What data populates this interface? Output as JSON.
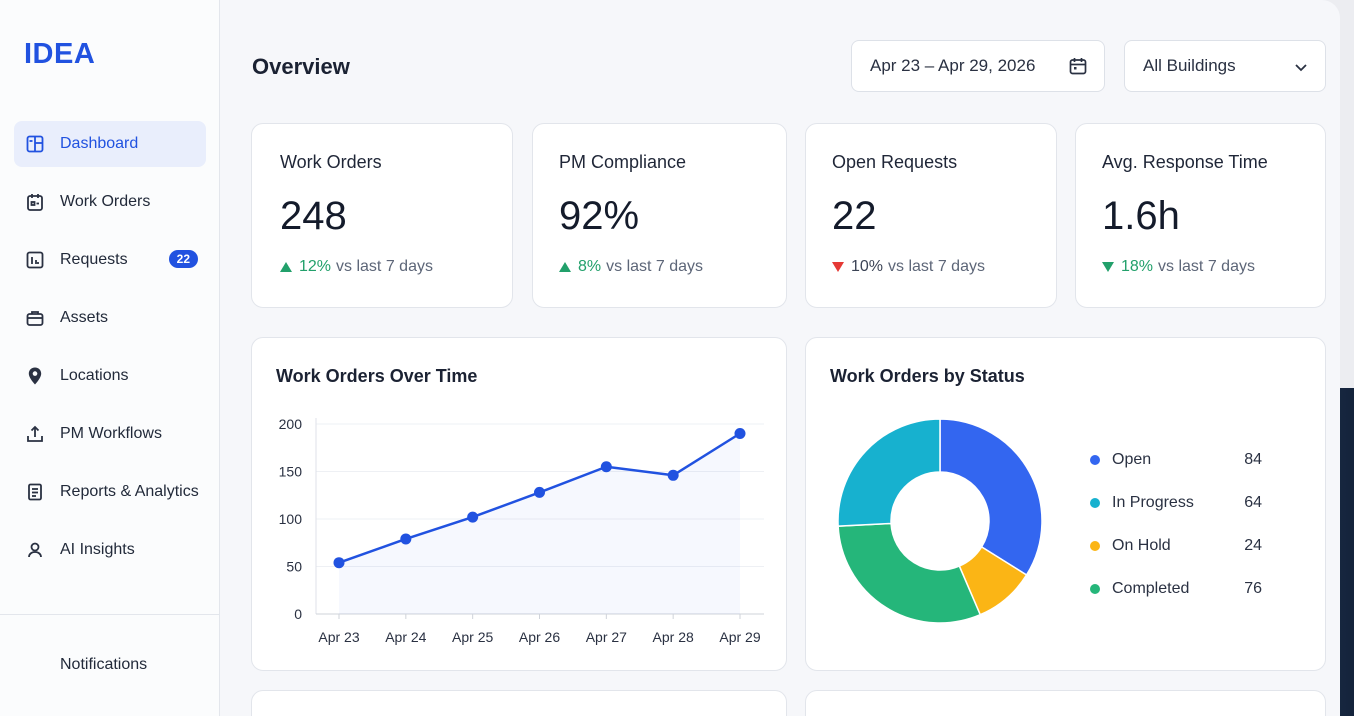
{
  "app": {
    "logo": "IDEA"
  },
  "sidebar": {
    "items": [
      {
        "label": "Dashboard",
        "icon": "dashboard-icon",
        "active": true
      },
      {
        "label": "Work Orders",
        "icon": "clipboard-icon"
      },
      {
        "label": "Requests",
        "icon": "requests-icon",
        "badge": "22"
      },
      {
        "label": "Assets",
        "icon": "briefcase-icon"
      },
      {
        "label": "Locations",
        "icon": "location-pin-icon"
      },
      {
        "label": "PM Workflows",
        "icon": "upload-icon"
      },
      {
        "label": "Reports & Analytics",
        "icon": "report-icon"
      },
      {
        "label": "AI Insights",
        "icon": "ai-icon"
      }
    ],
    "notifications": "Notifications"
  },
  "header": {
    "title": "Overview",
    "date_range": "Apr 23 – Apr 29, 2026",
    "building_filter": "All Buildings"
  },
  "kpis": [
    {
      "label": "Work Orders",
      "value": "248",
      "change": "12%",
      "direction": "up",
      "suffix": "vs last 7 days"
    },
    {
      "label": "PM Compliance",
      "value": "92%",
      "change": "8%",
      "direction": "up",
      "suffix": "vs last 7 days"
    },
    {
      "label": "Open Requests",
      "value": "22",
      "change": "10%",
      "direction": "down",
      "suffix": "vs last 7 days"
    },
    {
      "label": "Avg. Response Time",
      "value": "1.6h",
      "change": "18%",
      "direction": "down-good",
      "suffix": "vs last 7 days"
    }
  ],
  "colors": {
    "accent": "#2152e0",
    "up": "#22a06b",
    "down": "#e53935",
    "open": "#3366f0",
    "in_progress": "#17b1cf",
    "on_hold": "#fbb515",
    "completed": "#25b67a"
  },
  "chart_data": [
    {
      "type": "line",
      "title": "Work Orders Over Time",
      "categories": [
        "Apr 23",
        "Apr 24",
        "Apr 25",
        "Apr 26",
        "Apr 27",
        "Apr 28",
        "Apr 29"
      ],
      "values": [
        54,
        79,
        102,
        128,
        155,
        146,
        190
      ],
      "ylim": [
        0,
        200
      ],
      "yticks": [
        "0",
        "50",
        "100",
        "150",
        "200"
      ],
      "grid": true
    },
    {
      "type": "pie",
      "title": "Work Orders by Status",
      "slices": [
        {
          "name": "Open",
          "value": 84
        },
        {
          "name": "In Progress",
          "value": 64
        },
        {
          "name": "On Hold",
          "value": 24
        },
        {
          "name": "Completed",
          "value": 76
        }
      ],
      "legend": "right"
    }
  ]
}
